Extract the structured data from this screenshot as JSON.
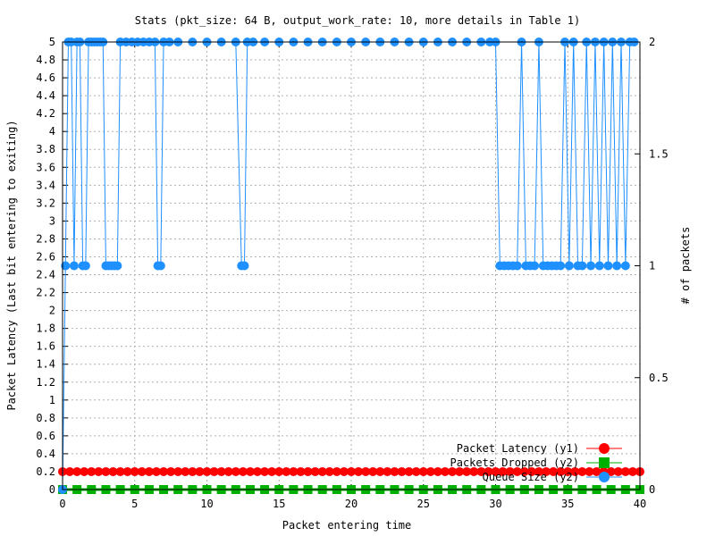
{
  "chart_data": {
    "type": "line",
    "title": "Stats (pkt_size: 64 B, output_work_rate: 10, more details in Table 1)",
    "xlabel": "Packet entering time",
    "ylabel": "Packet Latency (Last bit entering to exiting)",
    "y2label": "# of packets",
    "xlim": [
      0,
      40
    ],
    "ylim": [
      0,
      5
    ],
    "y2lim": [
      0,
      2
    ],
    "x_ticks": [
      0,
      5,
      10,
      15,
      20,
      25,
      30,
      35,
      40
    ],
    "y_ticks": [
      0,
      0.2,
      0.4,
      0.6,
      0.8,
      1,
      1.2,
      1.4,
      1.6,
      1.8,
      2,
      2.2,
      2.4,
      2.6,
      2.8,
      3,
      3.2,
      3.4,
      3.6,
      3.8,
      4,
      4.2,
      4.4,
      4.6,
      4.8,
      5
    ],
    "y2_ticks": [
      0,
      0.5,
      1,
      1.5,
      2
    ],
    "grid": true,
    "legend_position": "bottom-right",
    "series": [
      {
        "name": "Packet Latency (y1)",
        "axis": "y1",
        "color": "#ff0000",
        "marker": "circle",
        "x": [
          0,
          0.5,
          1,
          1.5,
          2,
          2.5,
          3,
          3.5,
          4,
          4.5,
          5,
          5.5,
          6,
          6.5,
          7,
          7.5,
          8,
          8.5,
          9,
          9.5,
          10,
          10.5,
          11,
          11.5,
          12,
          12.5,
          13,
          13.5,
          14,
          14.5,
          15,
          15.5,
          16,
          16.5,
          17,
          17.5,
          18,
          18.5,
          19,
          19.5,
          20,
          20.5,
          21,
          21.5,
          22,
          22.5,
          23,
          23.5,
          24,
          24.5,
          25,
          25.5,
          26,
          26.5,
          27,
          27.5,
          28,
          28.5,
          29,
          29.5,
          30,
          30.5,
          31,
          31.5,
          32,
          32.5,
          33,
          33.5,
          34,
          34.5,
          35,
          35.5,
          36,
          36.5,
          37,
          37.5,
          38,
          38.5,
          39,
          39.5,
          40
        ],
        "y": [
          0.2,
          0.2,
          0.2,
          0.2,
          0.2,
          0.2,
          0.2,
          0.2,
          0.2,
          0.2,
          0.2,
          0.2,
          0.2,
          0.2,
          0.2,
          0.2,
          0.2,
          0.2,
          0.2,
          0.2,
          0.2,
          0.2,
          0.2,
          0.2,
          0.2,
          0.2,
          0.2,
          0.2,
          0.2,
          0.2,
          0.2,
          0.2,
          0.2,
          0.2,
          0.2,
          0.2,
          0.2,
          0.2,
          0.2,
          0.2,
          0.2,
          0.2,
          0.2,
          0.2,
          0.2,
          0.2,
          0.2,
          0.2,
          0.2,
          0.2,
          0.2,
          0.2,
          0.2,
          0.2,
          0.2,
          0.2,
          0.2,
          0.2,
          0.2,
          0.2,
          0.2,
          0.2,
          0.2,
          0.2,
          0.2,
          0.2,
          0.2,
          0.2,
          0.2,
          0.2,
          0.2,
          0.2,
          0.2,
          0.2,
          0.2,
          0.2,
          0.2,
          0.2,
          0.2,
          0.2,
          0.2
        ]
      },
      {
        "name": "Packets Dropped (y2)",
        "axis": "y2",
        "color": "#00b000",
        "marker": "square",
        "x": [
          0,
          1,
          2,
          3,
          4,
          5,
          6,
          7,
          8,
          9,
          10,
          11,
          12,
          13,
          14,
          15,
          16,
          17,
          18,
          19,
          20,
          21,
          22,
          23,
          24,
          25,
          26,
          27,
          28,
          29,
          30,
          31,
          32,
          33,
          34,
          35,
          36,
          37,
          38,
          39,
          40
        ],
        "y": [
          0,
          0,
          0,
          0,
          0,
          0,
          0,
          0,
          0,
          0,
          0,
          0,
          0,
          0,
          0,
          0,
          0,
          0,
          0,
          0,
          0,
          0,
          0,
          0,
          0,
          0,
          0,
          0,
          0,
          0,
          0,
          0,
          0,
          0,
          0,
          0,
          0,
          0,
          0,
          0,
          0
        ]
      },
      {
        "name": "Queue Size (y2)",
        "axis": "y2",
        "color": "#1e90ff",
        "marker": "circle",
        "x": [
          0,
          0.2,
          0.4,
          0.6,
          0.8,
          1.0,
          1.2,
          1.4,
          1.6,
          1.8,
          2.0,
          2.2,
          2.4,
          2.6,
          2.8,
          3.0,
          3.2,
          3.4,
          3.6,
          3.8,
          4.0,
          4.4,
          4.8,
          5.2,
          5.6,
          6.0,
          6.4,
          6.6,
          6.8,
          7.0,
          7.4,
          8.0,
          9.0,
          10.0,
          11.0,
          12.0,
          12.4,
          12.6,
          12.8,
          13.2,
          14.0,
          15.0,
          16.0,
          17.0,
          18.0,
          19.0,
          20.0,
          21.0,
          22.0,
          23.0,
          24.0,
          25.0,
          26.0,
          27.0,
          28.0,
          29.0,
          29.6,
          30.0,
          30.3,
          30.6,
          30.9,
          31.2,
          31.5,
          31.8,
          32.1,
          32.4,
          32.7,
          33.0,
          33.3,
          33.6,
          33.9,
          34.2,
          34.5,
          34.8,
          35.1,
          35.4,
          35.7,
          36.0,
          36.3,
          36.6,
          36.9,
          37.2,
          37.5,
          37.8,
          38.1,
          38.4,
          38.7,
          39.0,
          39.3,
          39.6
        ],
        "y": [
          0,
          1,
          2,
          2,
          1,
          2,
          2,
          1,
          1,
          2,
          2,
          2,
          2,
          2,
          2,
          1,
          1,
          1,
          1,
          1,
          2,
          2,
          2,
          2,
          2,
          2,
          2,
          1,
          1,
          2,
          2,
          2,
          2,
          2,
          2,
          2,
          1,
          1,
          2,
          2,
          2,
          2,
          2,
          2,
          2,
          2,
          2,
          2,
          2,
          2,
          2,
          2,
          2,
          2,
          2,
          2,
          2,
          2,
          1,
          1,
          1,
          1,
          1,
          2,
          1,
          1,
          1,
          2,
          1,
          1,
          1,
          1,
          1,
          2,
          1,
          2,
          1,
          1,
          2,
          1,
          2,
          1,
          2,
          1,
          2,
          1,
          2,
          1,
          2,
          2
        ]
      }
    ]
  }
}
